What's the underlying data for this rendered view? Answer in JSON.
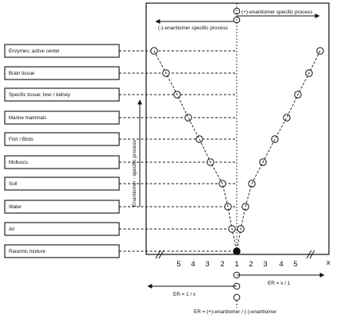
{
  "categories": [
    "Enzymes; active center",
    "Brain tissue",
    "Specific tissue; liver / kidney",
    "Marine mammals",
    "Fish / Birds",
    "Molluscs",
    "Soil",
    "Water",
    "Air",
    "Racemic mixture"
  ],
  "top": {
    "plus_label": "(+)-enantiomer specific process",
    "minus_label": "(-)-enantiomer specific process"
  },
  "vertical_label": "Enantiomer - specific process",
  "axis": {
    "x_label": "x",
    "left_ticks": [
      "5",
      "4",
      "3",
      "2"
    ],
    "center_tick": "1",
    "right_ticks": [
      "2",
      "3",
      "4",
      "5"
    ]
  },
  "bottom": {
    "right_formula": "ER = x / 1",
    "left_formula": "ER = 1 / x",
    "definition": "ER = (+)-enantiomer / (-)-enantiomer"
  }
}
